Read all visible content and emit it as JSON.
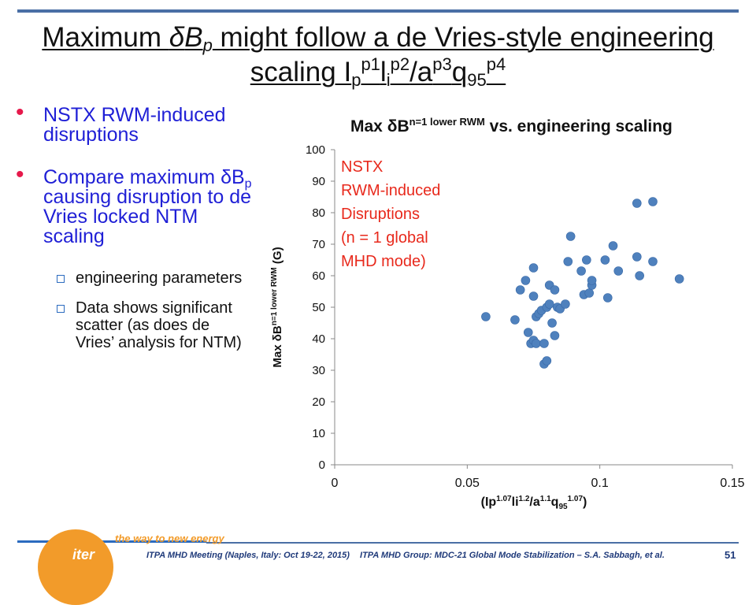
{
  "slide": {
    "title_prefix": "Maximum ",
    "title_delta": "δ",
    "title_b": "B",
    "title_b_sub": "p",
    "title_rest": " might follow a de Vries-style engineering",
    "title_line2_prefix": "scaling I",
    "title_ip_sub": "p",
    "title_ip_sup": "p1",
    "title_l": "l",
    "title_li_sub": "i",
    "title_li_sup": "p2",
    "title_a": "/a",
    "title_a_sup": "p3",
    "title_q": "q",
    "title_q_sub": "95",
    "title_q_sup": "p4"
  },
  "bullets": {
    "b1": "NSTX RWM-induced disruptions",
    "b2_pre": "Compare maximum ",
    "b2_delta": "δ",
    "b2_b": "B",
    "b2_sub": "p",
    "b2_post": " causing disruption to de Vries locked NTM scaling",
    "sub1": "engineering parameters",
    "sub2": "Data shows significant scatter (as does de Vries’ analysis for NTM)"
  },
  "chart_data": {
    "type": "scatter",
    "title_pre": "Max ",
    "title_delta": "δ",
    "title_b": "B",
    "title_sup": "n=1 lower RWM",
    "title_post": " vs. engineering scaling",
    "xlabel": "(Ip^1.07 li^1.2 / a^1.1 q95^1.07)",
    "xlabel_parts": [
      "(Ip",
      "1.07",
      "li",
      "1.2",
      "/a",
      "1.1",
      "q",
      "95",
      "1.07",
      ")"
    ],
    "ylabel_pre": "Max ",
    "ylabel_delta": "δ",
    "ylabel_b": "B",
    "ylabel_sup": "n=1 lower RWM",
    "ylabel_post": " (G)",
    "xlim": [
      0,
      0.15
    ],
    "ylim": [
      0,
      100
    ],
    "xticks": [
      "0",
      "0.05",
      "0.1",
      "0.15"
    ],
    "xtick_values": [
      0,
      0.05,
      0.1,
      0.15
    ],
    "yticks": [
      "0",
      "10",
      "20",
      "30",
      "40",
      "50",
      "60",
      "70",
      "80",
      "90",
      "100"
    ],
    "ytick_values": [
      0,
      10,
      20,
      30,
      40,
      50,
      60,
      70,
      80,
      90,
      100
    ],
    "grid": false,
    "marker_color": "#4f81bd",
    "annotation": [
      "NSTX",
      "RWM-induced",
      "Disruptions",
      "(n = 1 global",
      "MHD mode)"
    ],
    "annotation_color": "#e8291c",
    "points": [
      {
        "x": 0.057,
        "y": 47.0
      },
      {
        "x": 0.068,
        "y": 46.0
      },
      {
        "x": 0.07,
        "y": 55.5
      },
      {
        "x": 0.072,
        "y": 58.5
      },
      {
        "x": 0.073,
        "y": 42.0
      },
      {
        "x": 0.074,
        "y": 38.5
      },
      {
        "x": 0.075,
        "y": 62.5
      },
      {
        "x": 0.075,
        "y": 53.5
      },
      {
        "x": 0.075,
        "y": 39.5
      },
      {
        "x": 0.076,
        "y": 38.5
      },
      {
        "x": 0.076,
        "y": 47.0
      },
      {
        "x": 0.077,
        "y": 48.0
      },
      {
        "x": 0.078,
        "y": 49.0
      },
      {
        "x": 0.079,
        "y": 38.5
      },
      {
        "x": 0.079,
        "y": 32.0
      },
      {
        "x": 0.08,
        "y": 33.0
      },
      {
        "x": 0.08,
        "y": 50.0
      },
      {
        "x": 0.081,
        "y": 57.0
      },
      {
        "x": 0.081,
        "y": 51.0
      },
      {
        "x": 0.082,
        "y": 45.0
      },
      {
        "x": 0.083,
        "y": 41.0
      },
      {
        "x": 0.083,
        "y": 55.5
      },
      {
        "x": 0.084,
        "y": 50.0
      },
      {
        "x": 0.085,
        "y": 49.5
      },
      {
        "x": 0.087,
        "y": 51.0
      },
      {
        "x": 0.088,
        "y": 64.5
      },
      {
        "x": 0.089,
        "y": 72.5
      },
      {
        "x": 0.093,
        "y": 61.5
      },
      {
        "x": 0.094,
        "y": 54.0
      },
      {
        "x": 0.095,
        "y": 65.0
      },
      {
        "x": 0.096,
        "y": 54.5
      },
      {
        "x": 0.097,
        "y": 57.0
      },
      {
        "x": 0.097,
        "y": 58.5
      },
      {
        "x": 0.102,
        "y": 65.0
      },
      {
        "x": 0.103,
        "y": 53.0
      },
      {
        "x": 0.105,
        "y": 69.5
      },
      {
        "x": 0.107,
        "y": 61.5
      },
      {
        "x": 0.114,
        "y": 83.0
      },
      {
        "x": 0.114,
        "y": 66.0
      },
      {
        "x": 0.115,
        "y": 60.0
      },
      {
        "x": 0.12,
        "y": 83.5
      },
      {
        "x": 0.12,
        "y": 64.5
      },
      {
        "x": 0.13,
        "y": 59.0
      }
    ]
  },
  "footer": {
    "tagline": "the way to new energy",
    "logo_text": "iter",
    "meeting": "ITPA MHD Meeting (Naples, Italy: Oct 19-22, 2015)",
    "group": "ITPA MHD Group: MDC-21 Global Mode Stabilization – S.A. Sabbagh, et al.",
    "page_number": "51"
  }
}
